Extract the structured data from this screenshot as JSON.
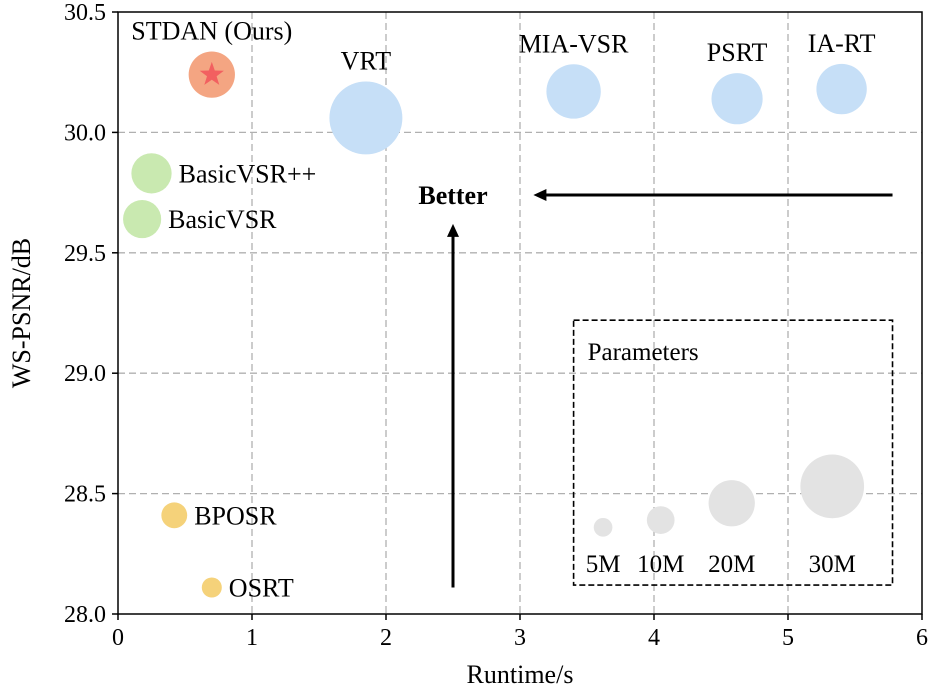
{
  "chart_data": {
    "type": "scatter",
    "title": "",
    "xlabel": "Runtime/s",
    "ylabel": "WS-PSNR/dB",
    "xlim": [
      0,
      6
    ],
    "ylim": [
      28.0,
      30.5
    ],
    "grid": true,
    "x_ticks": [
      0,
      1,
      2,
      3,
      4,
      5,
      6
    ],
    "x_tick_labels": [
      "0",
      "1",
      "2",
      "3",
      "4",
      "5",
      "6"
    ],
    "y_ticks": [
      28.0,
      28.5,
      29.0,
      29.5,
      30.0,
      30.5
    ],
    "y_tick_labels": [
      "28.0",
      "28.5",
      "29.0",
      "29.5",
      "30.0",
      "30.5"
    ],
    "series": [
      {
        "name": "STDAN (Ours)",
        "label": "STDAN (Ours)",
        "x": 0.7,
        "y": 30.24,
        "params_m": 10.5,
        "color": "#f4a582",
        "star": true,
        "star_color": "#f26060",
        "label_pos": "top"
      },
      {
        "name": "VRT",
        "label": "VRT",
        "x": 1.85,
        "y": 30.06,
        "params_m": 31.6,
        "color": "#c6dff7",
        "label_pos": "top"
      },
      {
        "name": "MIA-VSR",
        "label": "MIA-VSR",
        "x": 3.4,
        "y": 30.17,
        "params_m": 15.7,
        "color": "#c6dff7",
        "label_pos": "top"
      },
      {
        "name": "PSRT",
        "label": "PSRT",
        "x": 4.62,
        "y": 30.14,
        "params_m": 13.5,
        "color": "#c6dff7",
        "label_pos": "top"
      },
      {
        "name": "IA-RT",
        "label": "IA-RT",
        "x": 5.4,
        "y": 30.18,
        "params_m": 13.0,
        "color": "#c6dff7",
        "label_pos": "top"
      },
      {
        "name": "BasicVSR++",
        "label": "BasicVSR++",
        "x": 0.25,
        "y": 29.83,
        "params_m": 7.3,
        "color": "#c9e9b0",
        "label_pos": "right"
      },
      {
        "name": "BasicVSR",
        "label": "BasicVSR",
        "x": 0.18,
        "y": 29.64,
        "params_m": 6.3,
        "color": "#c9e9b0",
        "label_pos": "right"
      },
      {
        "name": "BPOSR",
        "label": "BPOSR",
        "x": 0.42,
        "y": 28.41,
        "params_m": 2.0,
        "color": "#f5d27a",
        "label_pos": "right"
      },
      {
        "name": "OSRT",
        "label": "OSRT",
        "x": 0.7,
        "y": 28.11,
        "params_m": 0.8,
        "color": "#f5d27a",
        "label_pos": "right"
      }
    ],
    "annotations": {
      "better_label": "Better",
      "arrow_up": {
        "x": 2.5,
        "y_from": 28.11,
        "y_to": 29.62
      },
      "arrow_left": {
        "y": 29.74,
        "x_from": 5.78,
        "x_to": 3.1
      }
    },
    "size_legend": {
      "title": "Parameters",
      "entries": [
        {
          "label": "5M",
          "params_m": 0.6,
          "x": 3.62,
          "y": 28.36
        },
        {
          "label": "10M",
          "params_m": 2.5,
          "x": 4.05,
          "y": 28.39
        },
        {
          "label": "20M",
          "params_m": 10.5,
          "x": 4.58,
          "y": 28.46
        },
        {
          "label": "30M",
          "params_m": 23.0,
          "x": 5.33,
          "y": 28.53
        }
      ],
      "box_x": [
        3.4,
        5.78
      ],
      "box_y": [
        28.12,
        29.22
      ],
      "color": "#e3e3e3"
    }
  }
}
